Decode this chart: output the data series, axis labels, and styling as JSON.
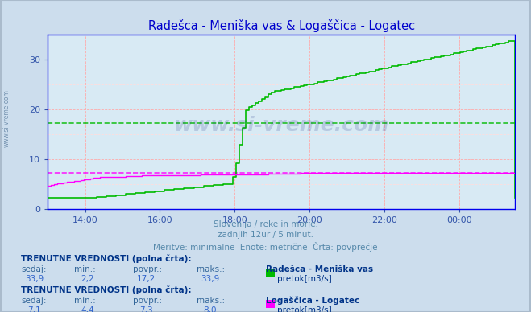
{
  "title": "Radešca - Meniška vas & Logaščica - Logatec",
  "title_color": "#0000cc",
  "bg_color": "#ccdded",
  "plot_bg_color": "#d8eaf4",
  "grid_color_major": "#ffaaaa",
  "grid_color_minor": "#ffdddd",
  "axis_color": "#0000ee",
  "tick_color": "#3355aa",
  "yticks": [
    0,
    10,
    20,
    30
  ],
  "ylim": [
    0,
    35
  ],
  "xlim_hours": [
    13.0,
    25.5
  ],
  "green_avg": 17.2,
  "magenta_avg": 7.3,
  "green_color": "#00bb00",
  "magenta_color": "#ff00ff",
  "watermark_text": "www.si-vreme.com",
  "watermark_color": "#223388",
  "watermark_alpha": 0.18,
  "subtitle1": "Slovenija / reke in morje.",
  "subtitle2": "zadnjih 12ur / 5 minut.",
  "subtitle3": "Meritve: minimalne  Enote: metrične  Črta: povprečje",
  "subtitle_color": "#5588aa",
  "info1_header": "TRENUTNE VREDNOSTI (polna črta):",
  "info1_cols": [
    "sedaj:",
    "min.:",
    "povpr.:",
    "maks.:"
  ],
  "info1_vals": [
    "33,9",
    "2,2",
    "17,2",
    "33,9"
  ],
  "info1_name": "Radešca - Meniška vas",
  "info1_legend": "pretok[m3/s]",
  "info2_header": "TRENUTNE VREDNOSTI (polna črta):",
  "info2_cols": [
    "sedaj:",
    "min.:",
    "povpr.:",
    "maks.:"
  ],
  "info2_vals": [
    "7,1",
    "4,4",
    "7,3",
    "8,0"
  ],
  "info2_name": "Logaščica - Logatec",
  "info2_legend": "pretok[m3/s]",
  "ylabel_side": "www.si-vreme.com"
}
